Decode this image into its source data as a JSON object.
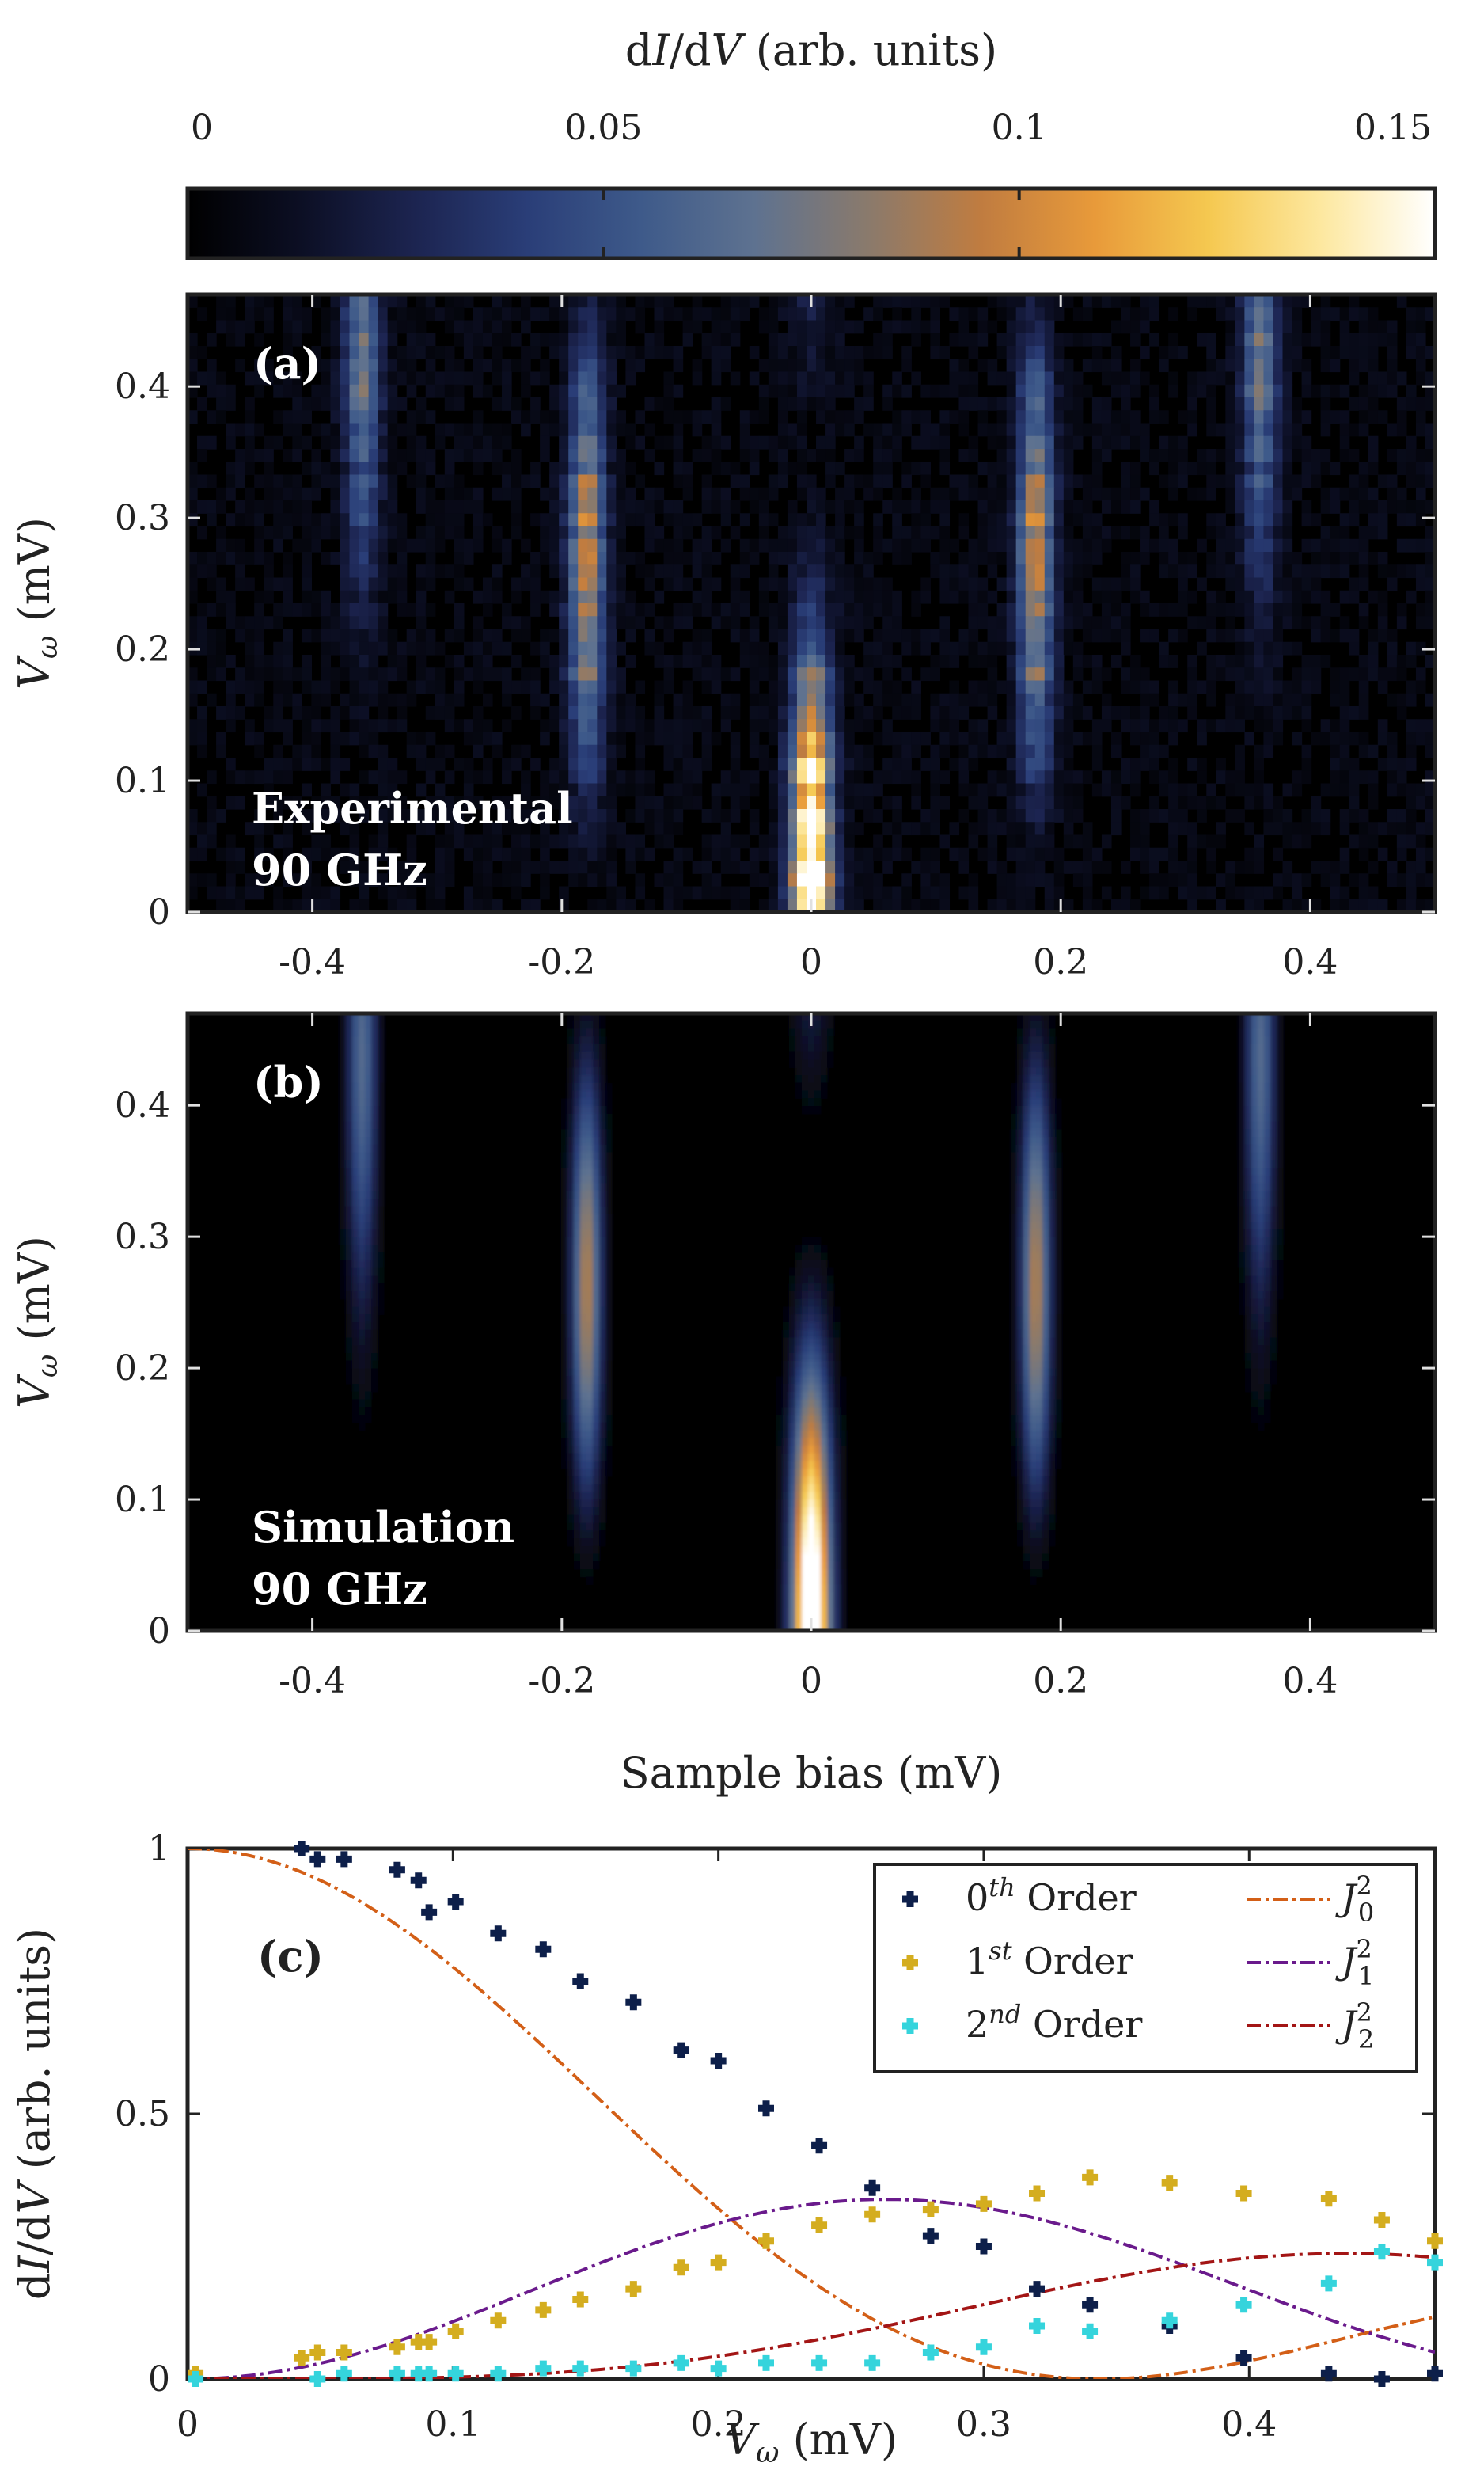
{
  "chart_data": [
    {
      "type": "colorbar",
      "label": "dI/dV (arb. units)",
      "ticks": [
        0,
        0.05,
        0.1,
        0.15
      ],
      "tick_labels": [
        "0",
        "0.05",
        "0.1",
        "0.15"
      ],
      "range": [
        0,
        0.15
      ],
      "colors": [
        "#000000",
        "#0c0f24",
        "#1c2450",
        "#2a3e78",
        "#3e5a8a",
        "#5e7290",
        "#8a7a6c",
        "#c07c40",
        "#e89a3a",
        "#f5c850",
        "#fde8a0",
        "#ffffff"
      ]
    },
    {
      "type": "heatmap",
      "panel_label": "(a)",
      "annotation": [
        "Experimental",
        "90 GHz"
      ],
      "xlabel": "",
      "ylabel": "V_ω (mV)",
      "xlim": [
        -0.5,
        0.5
      ],
      "ylim": [
        0,
        0.47
      ],
      "x_ticks": [
        -0.4,
        -0.2,
        0,
        0.2,
        0.4
      ],
      "x_tick_labels": [
        "-0.4",
        "-0.2",
        "0",
        "0.2",
        "0.4"
      ],
      "y_ticks": [
        0,
        0.1,
        0.2,
        0.3,
        0.4
      ],
      "y_tick_labels": [
        "0",
        "0.1",
        "0.2",
        "0.3",
        "0.4"
      ],
      "step_mV": 0.18,
      "orders": [
        0,
        1,
        2
      ],
      "style": "pixelated"
    },
    {
      "type": "heatmap",
      "panel_label": "(b)",
      "annotation": [
        "Simulation",
        "90 GHz"
      ],
      "xlabel": "Sample bias (mV)",
      "ylabel": "V_ω (mV)",
      "xlim": [
        -0.5,
        0.5
      ],
      "ylim": [
        0,
        0.47
      ],
      "x_ticks": [
        -0.4,
        -0.2,
        0,
        0.2,
        0.4
      ],
      "x_tick_labels": [
        "-0.4",
        "-0.2",
        "0",
        "0.2",
        "0.4"
      ],
      "y_ticks": [
        0,
        0.1,
        0.2,
        0.3,
        0.4
      ],
      "y_tick_labels": [
        "0",
        "0.1",
        "0.2",
        "0.3",
        "0.4"
      ],
      "step_mV": 0.18,
      "orders": [
        0,
        1,
        2,
        3
      ],
      "style": "smooth"
    },
    {
      "type": "scatter",
      "panel_label": "(c)",
      "xlabel": "V_ω (mV)",
      "ylabel": "dI/dV (arb. units)",
      "xlim": [
        0,
        0.47
      ],
      "ylim": [
        0,
        1
      ],
      "x_ticks": [
        0,
        0.1,
        0.2,
        0.3,
        0.4
      ],
      "x_tick_labels": [
        "0",
        "0.1",
        "0.2",
        "0.3",
        "0.4"
      ],
      "y_ticks": [
        0,
        0.5,
        1
      ],
      "y_tick_labels": [
        "0",
        "0.5",
        "1"
      ],
      "legend_position": "top-right",
      "bessel_alpha": 7.0,
      "series": [
        {
          "name": "0th Order",
          "order_num": "0",
          "order_sup": "th",
          "order_word": "Order",
          "color": "#0d1f4a",
          "x": [
            0.043,
            0.049,
            0.059,
            0.079,
            0.087,
            0.091,
            0.101,
            0.117,
            0.134,
            0.148,
            0.168,
            0.186,
            0.2,
            0.218,
            0.238,
            0.258,
            0.28,
            0.3,
            0.32,
            0.34,
            0.37,
            0.398,
            0.43,
            0.45,
            0.47
          ],
          "y": [
            1.0,
            0.98,
            0.98,
            0.96,
            0.94,
            0.88,
            0.9,
            0.84,
            0.81,
            0.75,
            0.71,
            0.62,
            0.6,
            0.51,
            0.44,
            0.36,
            0.27,
            0.25,
            0.17,
            0.14,
            0.1,
            0.04,
            0.01,
            0.0,
            0.01
          ]
        },
        {
          "name": "1st Order",
          "order_num": "1",
          "order_sup": "st",
          "order_word": "Order",
          "color": "#d4ad1f",
          "x": [
            0.003,
            0.043,
            0.049,
            0.059,
            0.079,
            0.087,
            0.091,
            0.101,
            0.117,
            0.134,
            0.148,
            0.168,
            0.186,
            0.2,
            0.218,
            0.238,
            0.258,
            0.28,
            0.3,
            0.32,
            0.34,
            0.37,
            0.398,
            0.43,
            0.45,
            0.47
          ],
          "y": [
            0.01,
            0.04,
            0.05,
            0.05,
            0.06,
            0.07,
            0.07,
            0.09,
            0.11,
            0.13,
            0.15,
            0.17,
            0.21,
            0.22,
            0.26,
            0.29,
            0.31,
            0.32,
            0.33,
            0.35,
            0.38,
            0.37,
            0.35,
            0.34,
            0.3,
            0.26
          ]
        },
        {
          "name": "2nd Order",
          "order_num": "2",
          "order_sup": "nd",
          "order_word": "Order",
          "color": "#35d4dc",
          "x": [
            0.003,
            0.049,
            0.059,
            0.079,
            0.087,
            0.091,
            0.101,
            0.117,
            0.134,
            0.148,
            0.168,
            0.186,
            0.2,
            0.218,
            0.238,
            0.258,
            0.28,
            0.3,
            0.32,
            0.34,
            0.37,
            0.398,
            0.43,
            0.45,
            0.47
          ],
          "y": [
            0.0,
            0.0,
            0.01,
            0.01,
            0.01,
            0.01,
            0.01,
            0.01,
            0.02,
            0.02,
            0.02,
            0.03,
            0.02,
            0.03,
            0.03,
            0.03,
            0.05,
            0.06,
            0.1,
            0.09,
            0.11,
            0.14,
            0.18,
            0.24,
            0.22
          ]
        }
      ],
      "fits": [
        {
          "name": "J0^2",
          "base": "J",
          "sub": "0",
          "sup": "2",
          "order": 0,
          "color": "#d35f17"
        },
        {
          "name": "J1^2",
          "base": "J",
          "sub": "1",
          "sup": "2",
          "order": 1,
          "color": "#6a1a8c"
        },
        {
          "name": "J2^2",
          "base": "J",
          "sub": "2",
          "sup": "2",
          "order": 2,
          "color": "#a31515"
        }
      ]
    }
  ]
}
